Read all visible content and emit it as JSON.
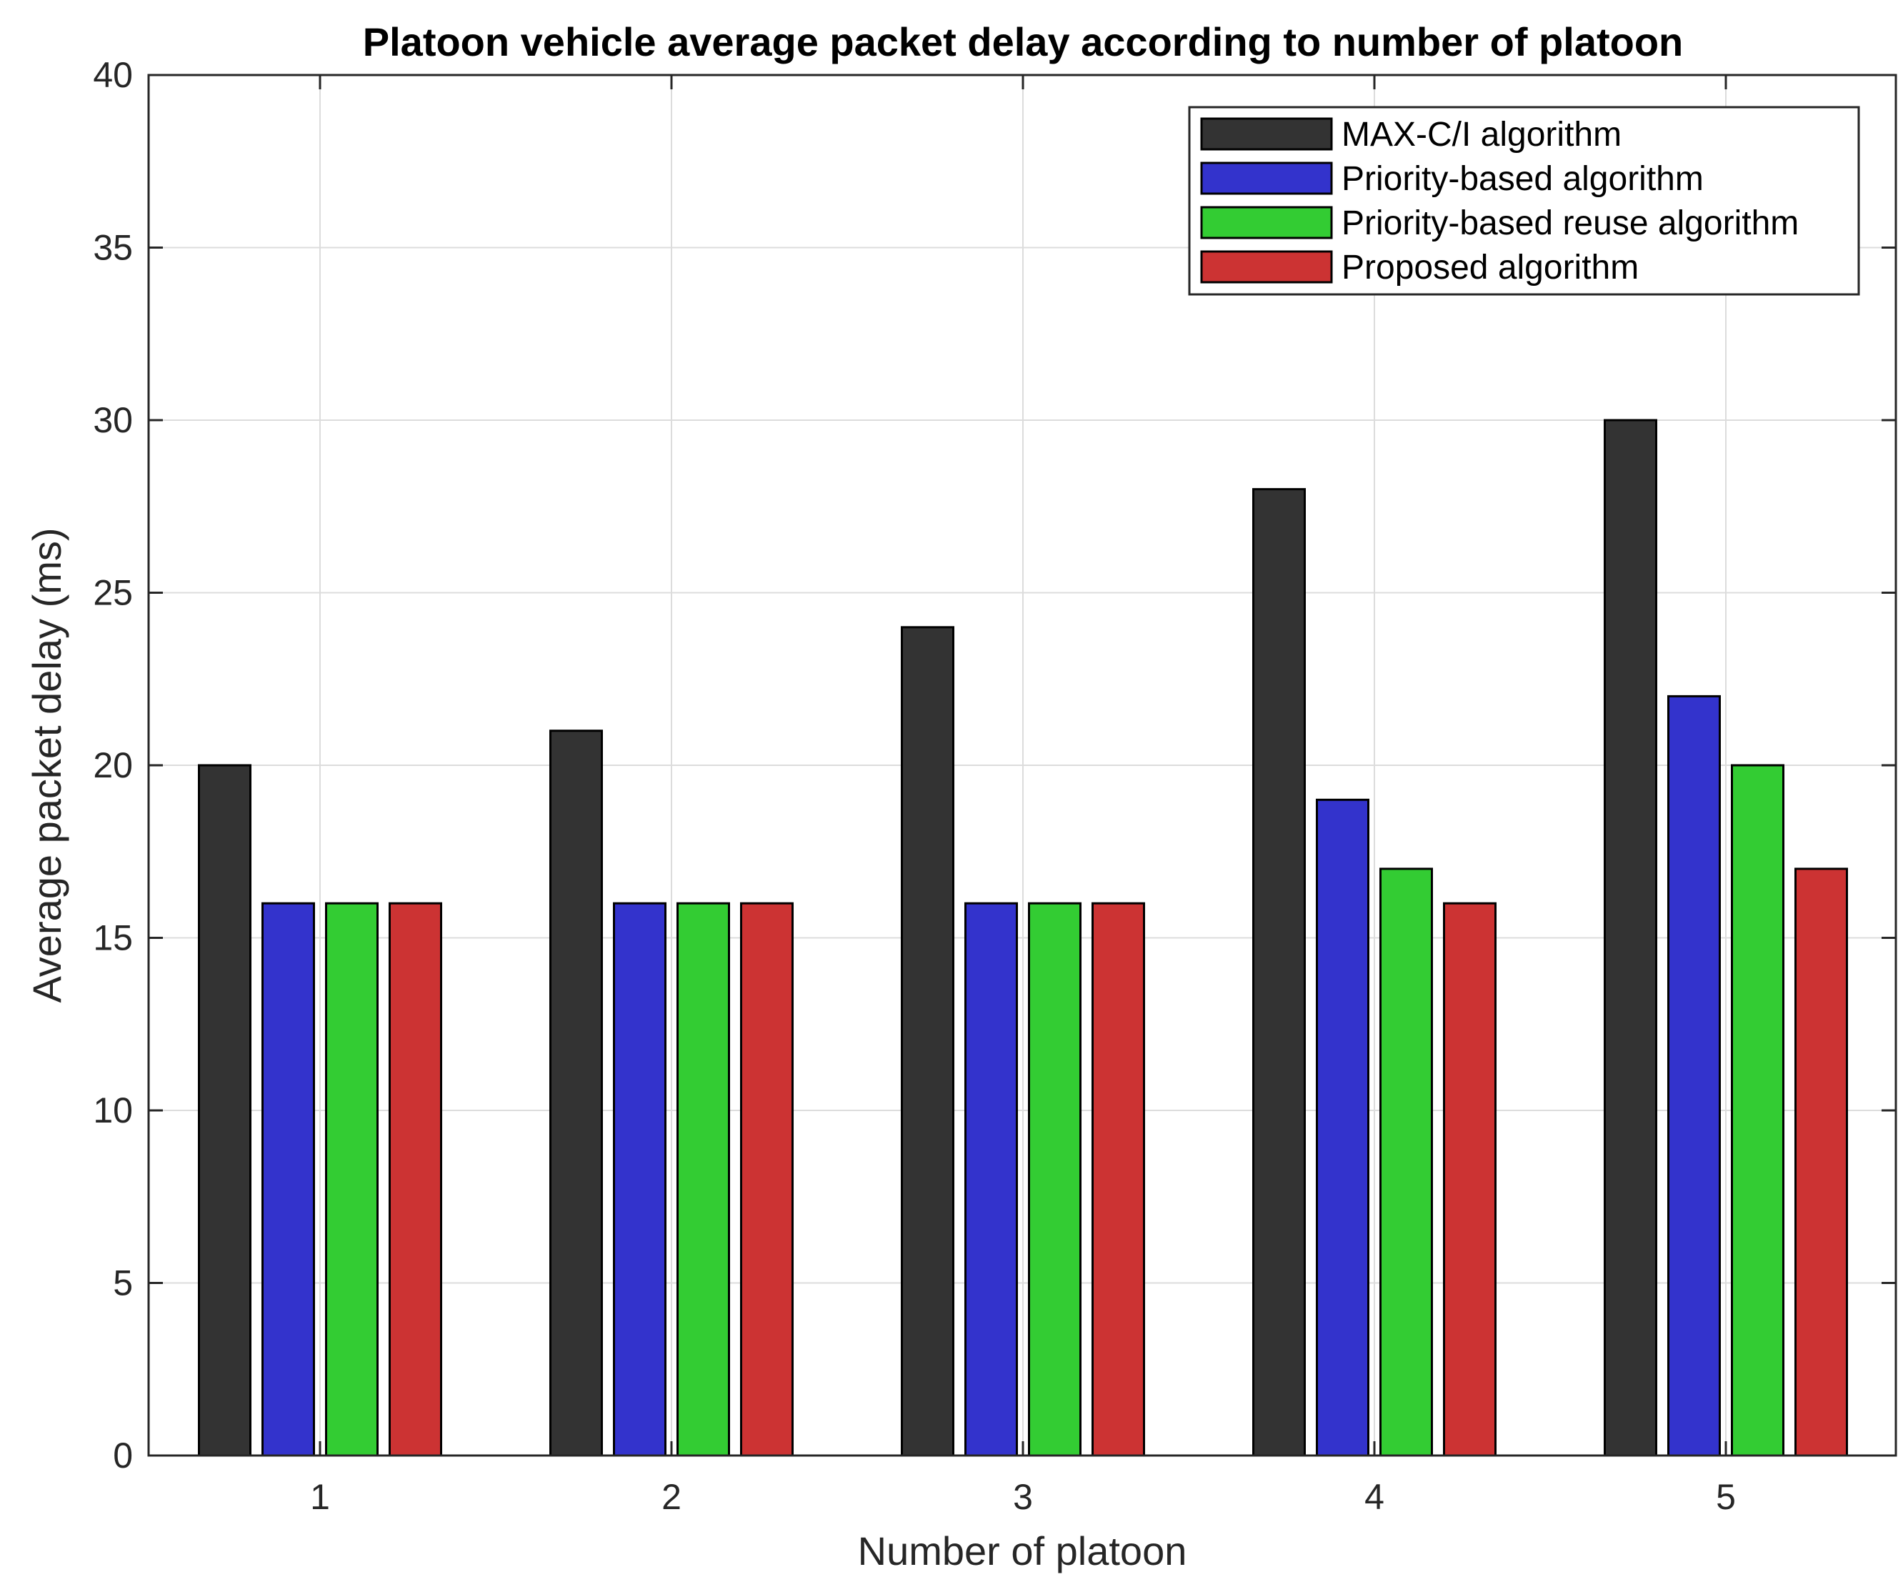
{
  "chart_data": {
    "type": "bar",
    "title": "Platoon vehicle average packet delay according to number of platoon",
    "xlabel": "Number of platoon",
    "ylabel": "Average packet delay (ms)",
    "categories": [
      "1",
      "2",
      "3",
      "4",
      "5"
    ],
    "ylim": [
      0,
      40
    ],
    "yticks": [
      "0",
      "5",
      "10",
      "15",
      "20",
      "25",
      "30",
      "35",
      "40"
    ],
    "grid": true,
    "legend_position": "top-right",
    "series": [
      {
        "name": "MAX-C/I algorithm",
        "color": "#333333",
        "values": [
          20,
          21,
          24,
          28,
          30
        ]
      },
      {
        "name": "Priority-based algorithm",
        "color": "#3333cc",
        "values": [
          16,
          16,
          16,
          19,
          22
        ]
      },
      {
        "name": "Priority-based reuse algorithm",
        "color": "#33cc33",
        "values": [
          16,
          16,
          16,
          17,
          20
        ]
      },
      {
        "name": "Proposed algorithm",
        "color": "#cc3333",
        "values": [
          16,
          16,
          16,
          16,
          17
        ]
      }
    ]
  }
}
